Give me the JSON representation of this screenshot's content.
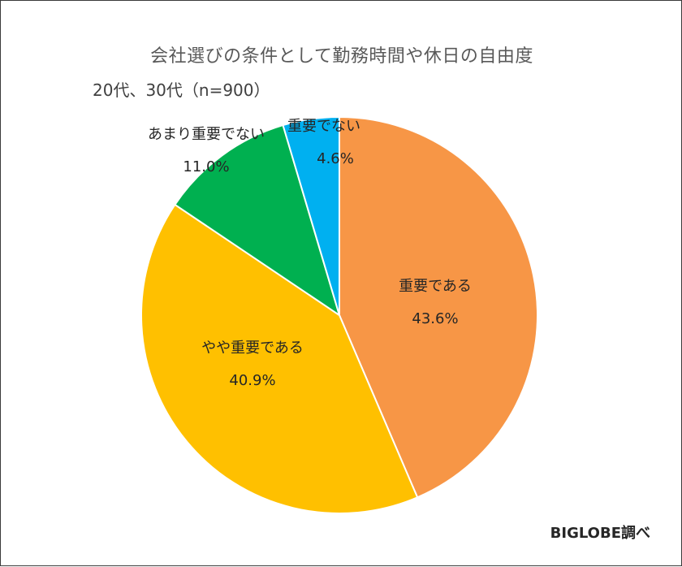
{
  "chart_data": {
    "type": "pie",
    "title": "会社選びの条件として勤務時間や休日の自由度",
    "subtitle": "20代、30代（n=900）",
    "slices": [
      {
        "label": "重要である",
        "value": 43.6,
        "value_text": "43.6%",
        "color": "#F79646"
      },
      {
        "label": "やや重要である",
        "value": 40.9,
        "value_text": "40.9%",
        "color": "#FFC000"
      },
      {
        "label": "あまり重要でない",
        "value": 11.0,
        "value_text": "11.0%",
        "color": "#00B050"
      },
      {
        "label": "重要でない",
        "value": 4.6,
        "value_text": "4.6%",
        "color": "#00B0F0"
      }
    ],
    "start": "12 o'clock",
    "direction": "clockwise",
    "unit": "%"
  },
  "credit": "BIGLOBE調べ"
}
